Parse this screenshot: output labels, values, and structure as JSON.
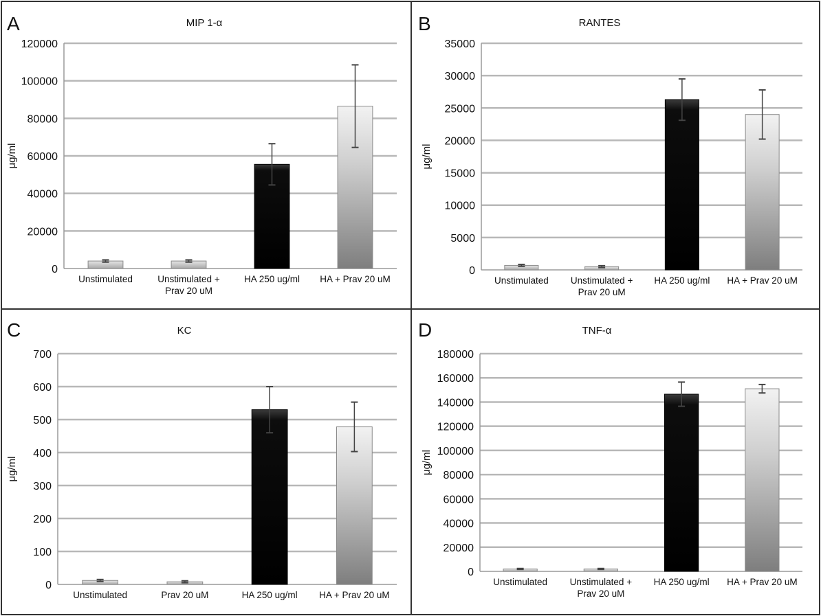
{
  "figure": {
    "panel_border_color": "#333333",
    "grid_color": "#b8b8b8"
  },
  "chart_data": [
    {
      "panel_letter": "A",
      "type": "bar",
      "title": "MIP 1-α",
      "ylabel": "μg/ml",
      "xlabel": "",
      "categories": [
        [
          "Unstimulated"
        ],
        [
          "Unstimulated +",
          "Prav 20 uM"
        ],
        [
          "HA 250 ug/ml"
        ],
        [
          "HA + Prav 20 uM"
        ]
      ],
      "values": [
        4000,
        4000,
        55500,
        86500
      ],
      "errors": [
        600,
        600,
        11000,
        22000
      ],
      "bar_styles": [
        "light",
        "light",
        "black",
        "gradient"
      ],
      "ylim": [
        0,
        120000
      ],
      "yticks": [
        0,
        20000,
        40000,
        60000,
        80000,
        100000,
        120000
      ],
      "grid": true
    },
    {
      "panel_letter": "B",
      "type": "bar",
      "title": "RANTES",
      "ylabel": "μg/ml",
      "xlabel": "",
      "categories": [
        [
          "Unstimulated"
        ],
        [
          "Unstimulated +",
          "Prav 20 uM"
        ],
        [
          "HA 250 ug/ml"
        ],
        [
          "HA + Prav 20 uM"
        ]
      ],
      "values": [
        700,
        500,
        26300,
        24000
      ],
      "errors": [
        150,
        150,
        3200,
        3800
      ],
      "bar_styles": [
        "light",
        "light",
        "black",
        "gradient"
      ],
      "ylim": [
        0,
        35000
      ],
      "yticks": [
        0,
        5000,
        10000,
        15000,
        20000,
        25000,
        30000,
        35000
      ],
      "grid": true
    },
    {
      "panel_letter": "C",
      "type": "bar",
      "title": "KC",
      "ylabel": "μg/ml",
      "xlabel": "",
      "categories": [
        [
          "Unstimulated"
        ],
        [
          "Prav 20 uM"
        ],
        [
          "HA 250 ug/ml"
        ],
        [
          "HA + Prav 20 uM"
        ]
      ],
      "values": [
        12,
        8,
        530,
        478
      ],
      "errors": [
        3,
        3,
        70,
        75
      ],
      "bar_styles": [
        "light",
        "light",
        "black",
        "gradient"
      ],
      "ylim": [
        0,
        700
      ],
      "yticks": [
        0,
        100,
        200,
        300,
        400,
        500,
        600,
        700
      ],
      "grid": true
    },
    {
      "panel_letter": "D",
      "type": "bar",
      "title": "TNF-α",
      "ylabel": "μg/ml",
      "xlabel": "",
      "categories": [
        [
          "Unstimulated"
        ],
        [
          "Unstimulated +",
          "Prav 20 uM"
        ],
        [
          "HA 250 ug/ml"
        ],
        [
          "HA + Prav 20 uM"
        ]
      ],
      "values": [
        2000,
        2000,
        146500,
        151000
      ],
      "errors": [
        400,
        400,
        10000,
        3500
      ],
      "bar_styles": [
        "light",
        "light",
        "black",
        "gradient"
      ],
      "ylim": [
        0,
        180000
      ],
      "yticks": [
        0,
        20000,
        40000,
        60000,
        80000,
        100000,
        120000,
        140000,
        160000,
        180000
      ],
      "grid": true
    }
  ]
}
